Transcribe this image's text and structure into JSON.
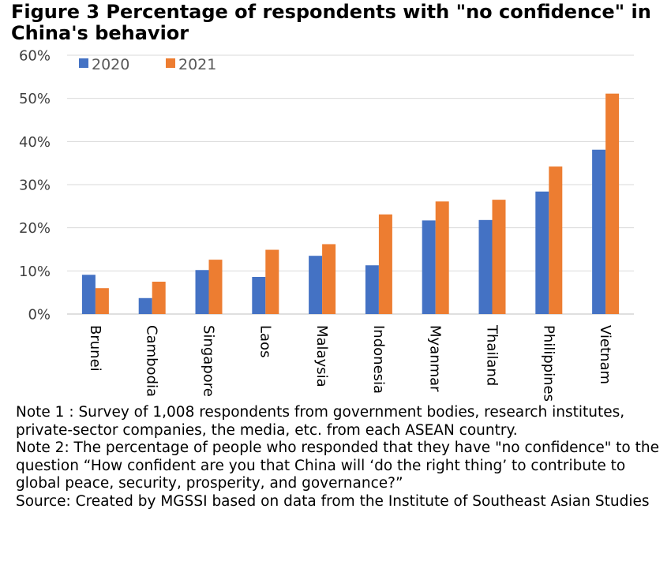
{
  "title": "Figure 3 Percentage of respondents with \"no confidence\" in China's behavior",
  "notes": [
    "Note 1 : Survey of 1,008 respondents from government bodies, research institutes, private-sector companies, the media, etc. from each ASEAN country.",
    "Note 2: The percentage of people who responded that they have \"no confidence\" to the question “How confident are you that China will ‘do the right thing’ to contribute to global peace, security, prosperity, and governance?”",
    "Source: Created by MGSSI based on data from the Institute of Southeast Asian Studies"
  ],
  "chart_data": {
    "type": "bar",
    "title": "Figure 3 Percentage of respondents with \"no confidence\" in China's behavior",
    "categories": [
      "Brunei",
      "Cambodia",
      "Singapore",
      "Laos",
      "Malaysia",
      "Indonesia",
      "Myanmar",
      "Thailand",
      "Philippines",
      "Vietnam"
    ],
    "series": [
      {
        "name": "2020",
        "color": "#4472C4",
        "values": [
          9.1,
          3.7,
          10.2,
          8.6,
          13.5,
          11.3,
          21.7,
          21.8,
          28.4,
          38.1
        ]
      },
      {
        "name": "2021",
        "color": "#ED7D31",
        "values": [
          6.0,
          7.5,
          12.6,
          14.9,
          16.2,
          23.1,
          26.1,
          26.5,
          34.2,
          51.1
        ]
      }
    ],
    "ylim": [
      0,
      60
    ],
    "yticks": [
      "0%",
      "10%",
      "20%",
      "30%",
      "40%",
      "50%",
      "60%"
    ],
    "grid": true,
    "legend_position": "top-left"
  }
}
